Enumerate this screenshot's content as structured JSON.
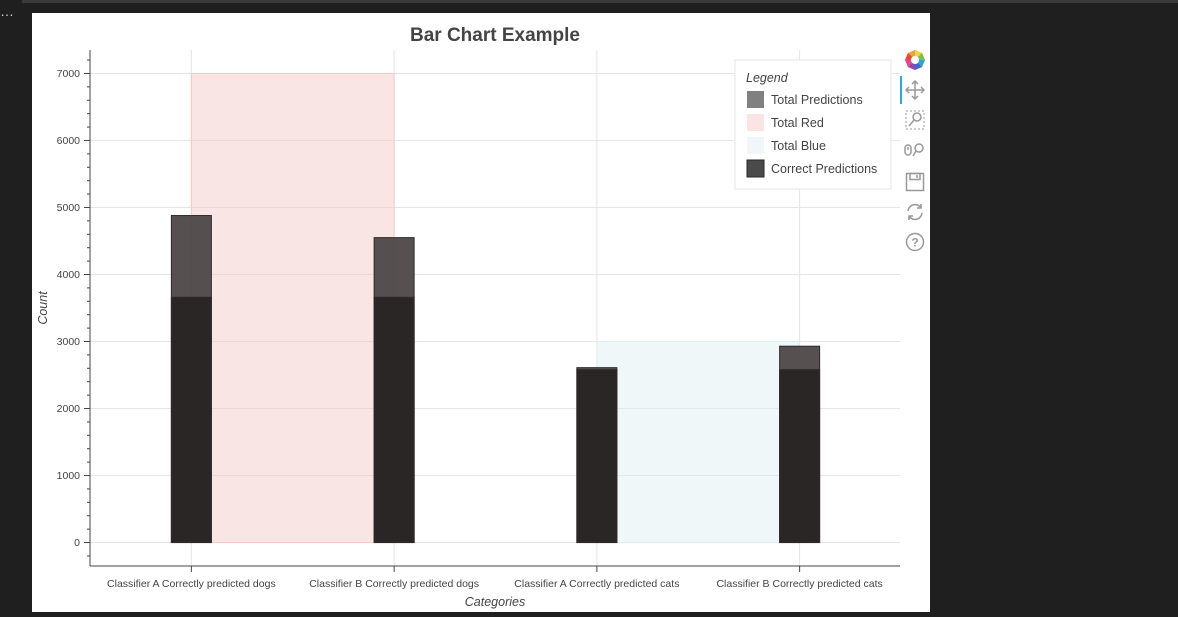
{
  "chart_data": {
    "type": "bar",
    "title": "Bar Chart Example",
    "xlabel": "Categories",
    "ylabel": "Count",
    "categories": [
      "Classifier A Correctly predicted dogs",
      "Classifier B Correctly predicted dogs",
      "Classifier A Correctly predicted cats",
      "Classifier B Correctly predicted cats"
    ],
    "ylim": [
      -350,
      7350
    ],
    "yticks": [
      0,
      1000,
      2000,
      3000,
      4000,
      5000,
      6000,
      7000
    ],
    "grid": true,
    "legend": {
      "title": "Legend",
      "placement": "top-right",
      "items": [
        {
          "label": "Total Predictions",
          "color": "#808080"
        },
        {
          "label": "Total Red",
          "color": "#fbe4e4"
        },
        {
          "label": "Total Blue",
          "color": "#f1f7f8"
        },
        {
          "label": "Correct Predictions",
          "color": "#4a4a4a"
        }
      ]
    },
    "background_regions": [
      {
        "name": "Total Red",
        "from_category": 0,
        "to_category": 1,
        "value": 7000,
        "color": "#f5c6c6"
      },
      {
        "name": "Total Blue",
        "from_category": 2,
        "to_category": 3,
        "value": 3000,
        "color": "#dcedf0"
      }
    ],
    "series": [
      {
        "name": "Total Predictions",
        "values": [
          4880,
          4550,
          2610,
          2930
        ],
        "color": "#4d4747"
      },
      {
        "name": "Correct Predictions",
        "values": [
          3660,
          3660,
          2580,
          2580
        ],
        "color": "#2b2626"
      }
    ]
  },
  "toolbar": {
    "tools": [
      {
        "name": "bokeh-logo-icon",
        "interactable": false
      },
      {
        "name": "pan-icon",
        "interactable": true
      },
      {
        "name": "box-zoom-icon",
        "interactable": true
      },
      {
        "name": "wheel-zoom-icon",
        "interactable": true
      },
      {
        "name": "save-icon",
        "interactable": true
      },
      {
        "name": "reset-icon",
        "interactable": true
      },
      {
        "name": "help-icon",
        "interactable": true
      }
    ]
  },
  "colors": {
    "page_bg": "#1f1f1f",
    "panel_bg": "#ffffff",
    "grid": "#e5e5e5",
    "axis": "#444444",
    "text": "#444444",
    "accent": "#26aae1"
  }
}
